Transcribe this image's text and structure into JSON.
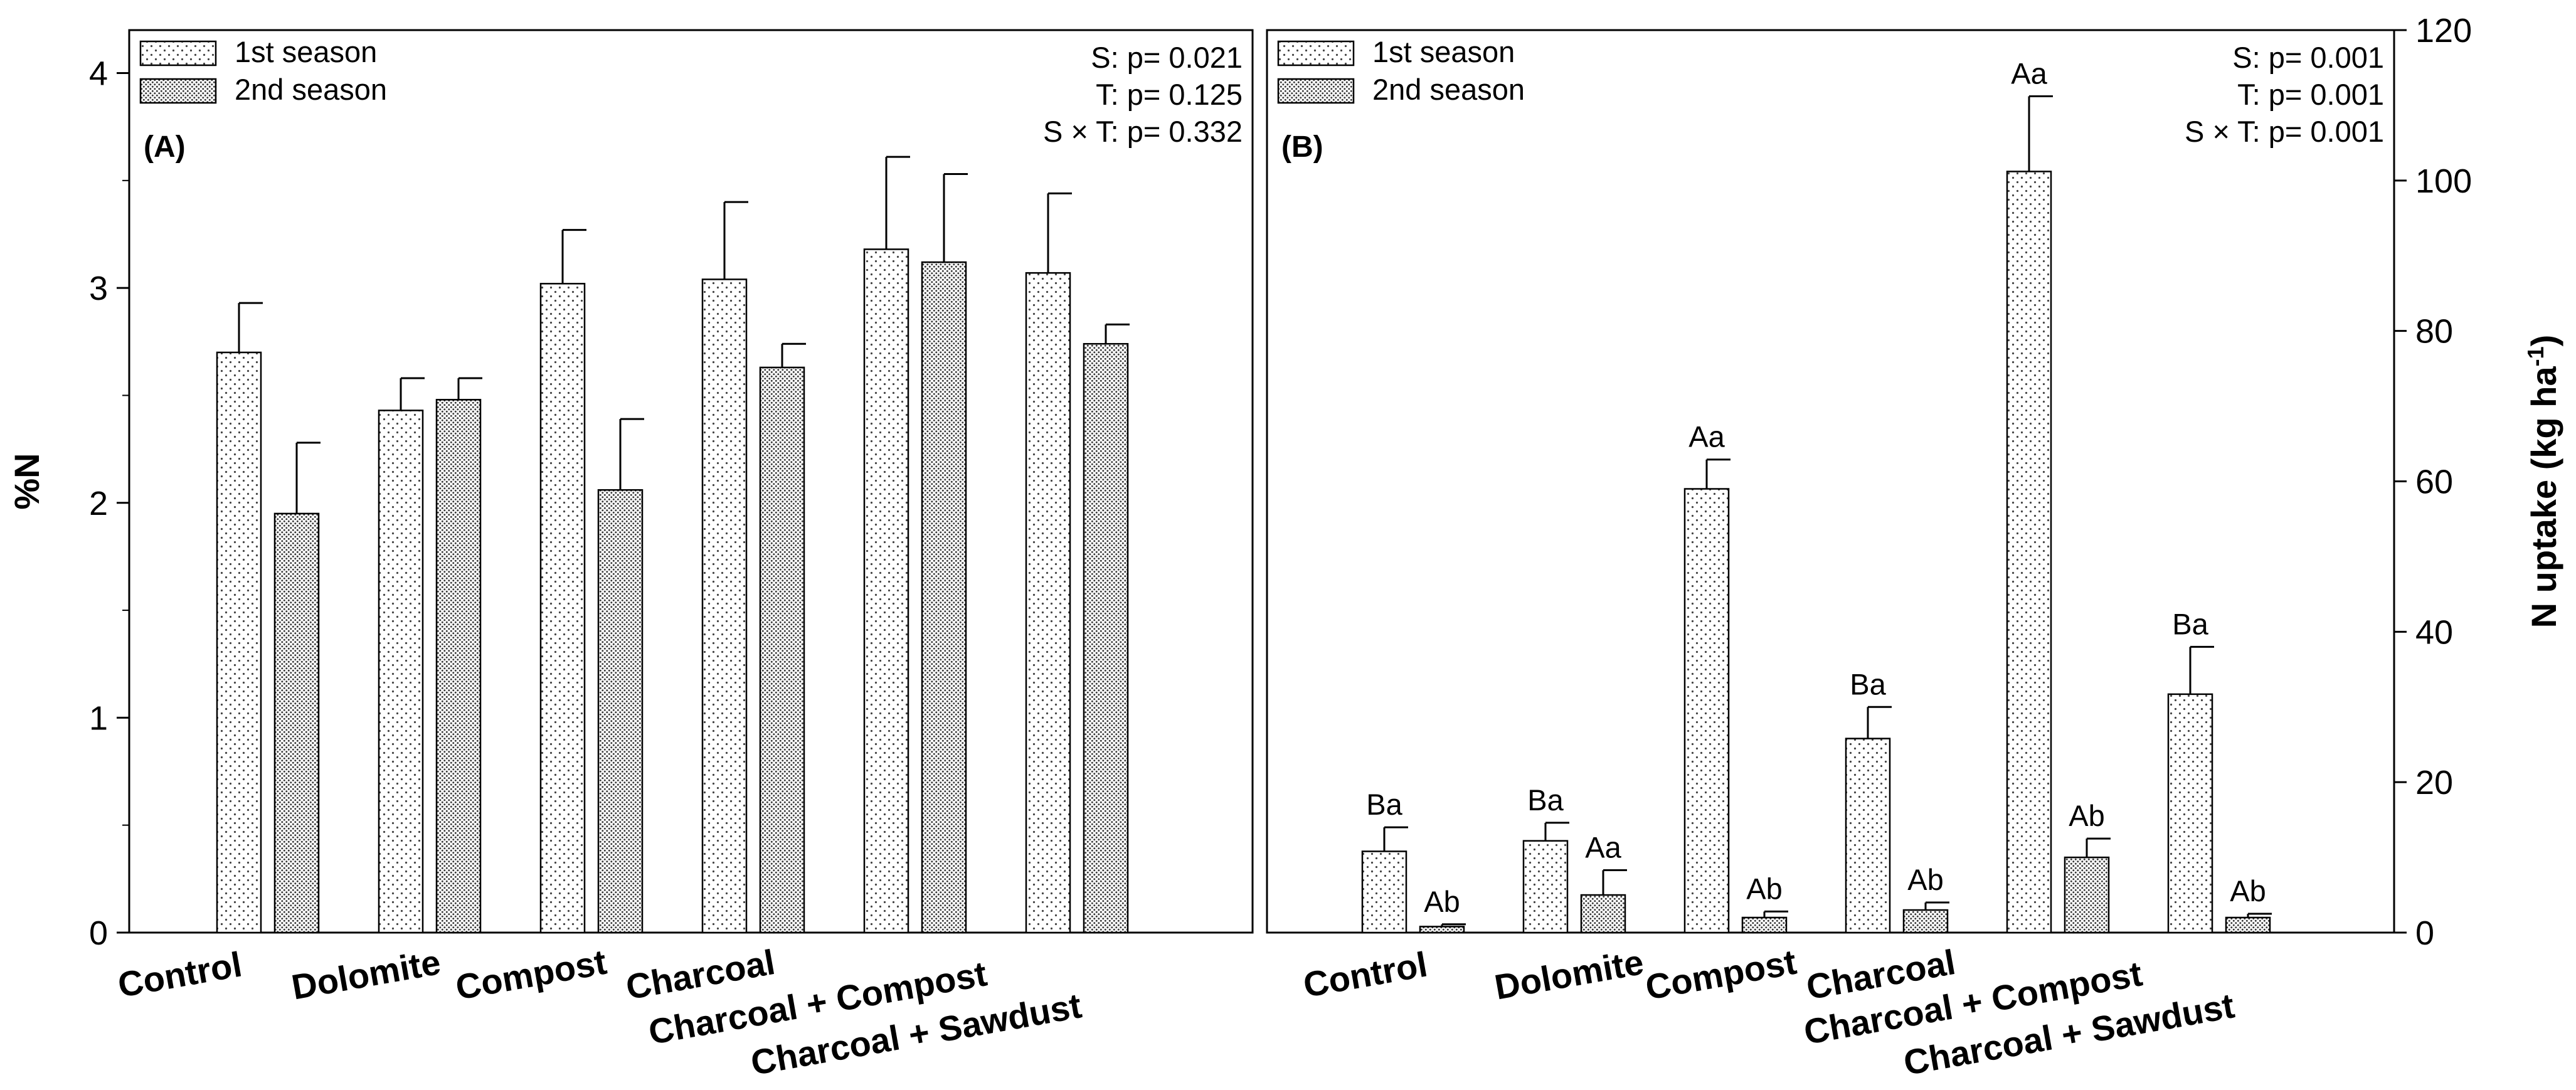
{
  "chart_data": [
    {
      "panel": "A",
      "type": "bar",
      "panel_label": "(A)",
      "ylabel": "%N",
      "ylim": [
        0,
        4.2
      ],
      "yticks": [
        0,
        1,
        2,
        3,
        4
      ],
      "ytick_labels": [
        "0",
        "1",
        "2",
        "3",
        "4"
      ],
      "y_axis_side": "left",
      "categories": [
        "Control",
        "Dolomite",
        "Compost",
        "Charcoal",
        "Charcoal + Compost",
        "Charcoal + Sawdust"
      ],
      "series": [
        {
          "name": "1st season",
          "pattern": "sparse-dots",
          "values": [
            2.7,
            2.43,
            3.02,
            3.04,
            3.18,
            3.07
          ],
          "errors": [
            0.23,
            0.15,
            0.25,
            0.36,
            0.43,
            0.37
          ],
          "letters": [
            "",
            "",
            "",
            "",
            "",
            ""
          ]
        },
        {
          "name": "2nd season",
          "pattern": "dense-dots",
          "values": [
            1.95,
            2.48,
            2.06,
            2.63,
            3.12,
            2.74
          ],
          "errors": [
            0.33,
            0.1,
            0.33,
            0.11,
            0.41,
            0.09
          ],
          "letters": [
            "",
            "",
            "",
            "",
            "",
            ""
          ]
        }
      ],
      "stats": [
        "S: p= 0.021",
        "T: p= 0.125",
        "S × T: p= 0.332"
      ],
      "legend_position": "top-left"
    },
    {
      "panel": "B",
      "type": "bar",
      "panel_label": "(B)",
      "ylabel": "N uptake (kg ha",
      "ylabel_sup": "-1",
      "ylabel_end": ")",
      "ylim": [
        0,
        120
      ],
      "yticks": [
        0,
        20,
        40,
        60,
        80,
        100,
        120
      ],
      "ytick_labels": [
        "0",
        "20",
        "40",
        "60",
        "80",
        "100",
        "120"
      ],
      "y_axis_side": "right",
      "categories": [
        "Control",
        "Dolomite",
        "Compost",
        "Charcoal",
        "Charcoal + Compost",
        "Charcoal + Sawdust"
      ],
      "series": [
        {
          "name": "1st season",
          "pattern": "sparse-dots",
          "values": [
            10.8,
            12.2,
            59.0,
            25.8,
            101.2,
            31.7
          ],
          "errors": [
            3.2,
            2.4,
            3.9,
            4.2,
            10.0,
            6.3
          ],
          "letters": [
            "Ba",
            "Ba",
            "Aa",
            "Ba",
            "Aa",
            "Ba"
          ]
        },
        {
          "name": "2nd season",
          "pattern": "dense-dots",
          "values": [
            0.8,
            5.0,
            2.0,
            3.0,
            10.0,
            2.0
          ],
          "errors": [
            0.3,
            3.3,
            0.8,
            1.0,
            2.5,
            0.5
          ],
          "letters": [
            "Ab",
            "Aa",
            "Ab",
            "Ab",
            "Ab",
            "Ab"
          ]
        }
      ],
      "stats": [
        "S: p= 0.001",
        "T: p= 0.001",
        "S × T: p= 0.001"
      ],
      "legend_position": "top-left"
    }
  ]
}
